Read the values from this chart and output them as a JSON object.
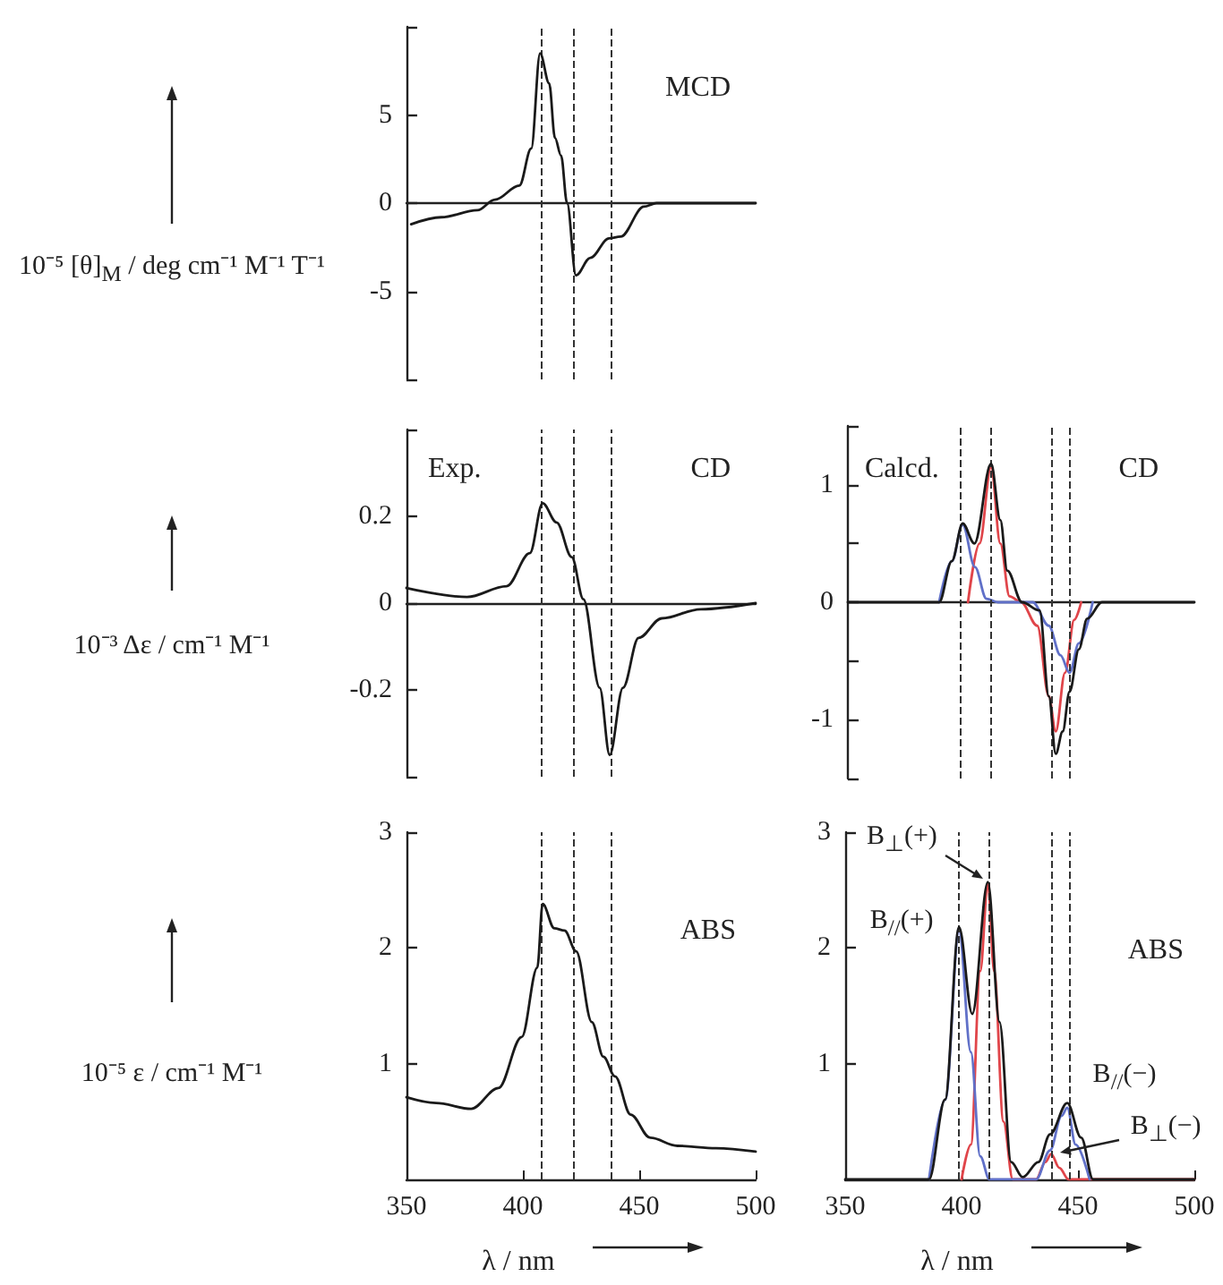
{
  "chart_data": [
    {
      "type": "line",
      "title": "MCD",
      "ylabel": "10⁻⁵ [θ]$_{M}$ / deg cm⁻¹ M⁻¹ T⁻¹",
      "xlim": [
        350,
        500
      ],
      "ylim": [
        -10,
        10
      ],
      "yticks": [
        {
          "value": -10,
          "label": null
        },
        -5,
        0,
        5,
        {
          "value": 10,
          "label": null
        }
      ],
      "tick_labels": "y",
      "marker": "none",
      "line_style": "solid",
      "series": [
        {
          "color": "#1a1a1a",
          "x": [
            352,
            365,
            380.5,
            388,
            398.5,
            403.6,
            407.4,
            411.3,
            413.8,
            416.4,
            419,
            422.8,
            429,
            437,
            442,
            452,
            457.4,
            470,
            485,
            500
          ],
          "values": [
            -1.2,
            -0.8,
            -0.4,
            0.2,
            1.0,
            3.1,
            8.5,
            6.8,
            3.7,
            2.7,
            0,
            -4.1,
            -3.1,
            -2.0,
            -1.9,
            -0.2,
            0,
            0,
            0,
            0
          ]
        }
      ],
      "ref_lines": [
        {
          "axis": "x",
          "value": 408,
          "line_style": "dashed",
          "color": "#333333"
        },
        {
          "axis": "x",
          "value": 422,
          "line_style": "dashed",
          "color": "#333333"
        },
        {
          "axis": "x",
          "value": 437.5,
          "line_style": "dashed",
          "color": "#333333"
        }
      ]
    },
    {
      "type": "line",
      "title": "CD",
      "subtitle": "Exp.",
      "ylabel": "10⁻³ Δε / cm⁻¹ M⁻¹",
      "xlim": [
        350,
        500
      ],
      "ylim": [
        -0.4,
        0.4
      ],
      "yticks": [
        {
          "value": -0.4,
          "label": null
        },
        -0.2,
        0,
        0.2,
        {
          "value": 0.4,
          "label": null
        }
      ],
      "tick_labels": "y",
      "marker": "none",
      "line_style": "solid",
      "series": [
        {
          "color": "#1a1a1a",
          "x": [
            350,
            376,
            393,
            403,
            408.5,
            414.5,
            421,
            426,
            433,
            437.3,
            443,
            449.7,
            459.7,
            476.4,
            500
          ],
          "values": [
            0.035,
            0.014,
            0.039,
            0.115,
            0.23,
            0.186,
            0.106,
            0.009,
            -0.195,
            -0.35,
            -0.195,
            -0.08,
            -0.035,
            -0.014,
            0
          ]
        }
      ],
      "ref_lines": [
        {
          "axis": "x",
          "value": 408,
          "line_style": "dashed",
          "color": "#333333"
        },
        {
          "axis": "x",
          "value": 422,
          "line_style": "dashed",
          "color": "#333333"
        },
        {
          "axis": "x",
          "value": 437.5,
          "line_style": "dashed",
          "color": "#333333"
        }
      ]
    },
    {
      "type": "line",
      "title": "CD",
      "subtitle": "Calcd.",
      "xlim": [
        350,
        500
      ],
      "ylim": [
        -1.5,
        1.5
      ],
      "yticks": [
        {
          "value": -1.5,
          "label": null
        },
        -1,
        {
          "value": -0.5,
          "label": null
        },
        0,
        {
          "value": 0.5,
          "label": null
        },
        1,
        {
          "value": 1.5,
          "label": null
        }
      ],
      "tick_labels": "y",
      "grid": false,
      "marker": "none",
      "line_style": "solid",
      "series": [
        {
          "color": "#1a1a1a",
          "x": [
            350,
            389.5,
            395,
            399.7,
            404.8,
            412,
            416,
            419,
            425.4,
            433,
            437,
            440,
            443,
            446,
            450,
            453.6,
            460,
            500
          ],
          "values": [
            0,
            0,
            0.35,
            0.67,
            0.5,
            1.18,
            0.7,
            0.27,
            0,
            -0.07,
            -0.8,
            -1.29,
            -1.1,
            -0.76,
            -0.4,
            -0.14,
            0,
            0
          ]
        },
        {
          "color": "#6070c8",
          "x": [
            389.5,
            395,
            399.7,
            405,
            410,
            415,
            430,
            437,
            442,
            446,
            450,
            456
          ],
          "values": [
            0,
            0.35,
            0.66,
            0.3,
            0.03,
            0,
            0,
            -0.2,
            -0.45,
            -0.6,
            -0.35,
            0
          ]
        },
        {
          "color": "#e0454a",
          "x": [
            402,
            407,
            412,
            416,
            420,
            425,
            432,
            437,
            440,
            444,
            448,
            451
          ],
          "values": [
            0,
            0.5,
            1.15,
            0.5,
            0.05,
            0,
            -0.2,
            -0.8,
            -1.1,
            -0.6,
            -0.15,
            0
          ]
        }
      ],
      "ref_lines": [
        {
          "axis": "x",
          "value": 399,
          "line_style": "dashed",
          "color": "#333333"
        },
        {
          "axis": "x",
          "value": 411.5,
          "line_style": "dashed",
          "color": "#333333"
        },
        {
          "axis": "x",
          "value": 438.5,
          "line_style": "dashed",
          "color": "#333333"
        },
        {
          "axis": "x",
          "value": 446,
          "line_style": "dashed",
          "color": "#333333"
        }
      ]
    },
    {
      "type": "line",
      "title": "ABS",
      "ylabel": "10⁻⁵ ε / cm⁻¹ M⁻¹",
      "xlabel": "λ / nm",
      "xlim": [
        350,
        500
      ],
      "ylim": [
        0,
        3
      ],
      "xticks": [
        350,
        400,
        450,
        500
      ],
      "yticks": [
        1,
        2,
        3
      ],
      "grid": false,
      "marker": "none",
      "line_style": "solid",
      "series": [
        {
          "color": "#1a1a1a",
          "x": [
            350,
            362.7,
            377.8,
            389.5,
            399.5,
            406.2,
            408.5,
            413.5,
            417.9,
            422.9,
            429.6,
            434.6,
            439.6,
            446.3,
            454.7,
            466.4,
            483,
            500
          ],
          "values": [
            0.71,
            0.66,
            0.61,
            0.79,
            1.23,
            1.83,
            2.38,
            2.17,
            2.15,
            1.97,
            1.36,
            1.06,
            0.89,
            0.56,
            0.36,
            0.29,
            0.27,
            0.24
          ]
        }
      ],
      "ref_lines": [
        {
          "axis": "x",
          "value": 408,
          "line_style": "dashed",
          "color": "#333333"
        },
        {
          "axis": "x",
          "value": 422,
          "line_style": "dashed",
          "color": "#333333"
        },
        {
          "axis": "x",
          "value": 437.5,
          "line_style": "dashed",
          "color": "#333333"
        }
      ]
    },
    {
      "type": "line",
      "title": "ABS",
      "xlabel": "λ / nm",
      "xlim": [
        350,
        500
      ],
      "ylim": [
        0,
        3
      ],
      "xticks": [
        350,
        400,
        450,
        500
      ],
      "yticks": [
        1,
        2,
        3
      ],
      "grid": false,
      "marker": "none",
      "line_style": "solid",
      "series": [
        {
          "color": "#1a1a1a",
          "x": [
            350,
            386,
            392.9,
            398.9,
            404.6,
            411.3,
            416.3,
            421.3,
            426.3,
            433,
            438,
            445.4,
            451.4,
            456.5,
            500
          ],
          "values": [
            0,
            0,
            0.69,
            2.18,
            1.43,
            2.57,
            1.36,
            0.15,
            0.02,
            0.15,
            0.39,
            0.66,
            0.36,
            0,
            0
          ]
        },
        {
          "color": "#6070c8",
          "x": [
            386,
            393,
            398.9,
            404,
            408,
            412,
            432,
            438,
            443,
            445.4,
            449,
            455
          ],
          "values": [
            0,
            0.69,
            2.15,
            1.1,
            0.2,
            0,
            0,
            0.25,
            0.55,
            0.62,
            0.3,
            0
          ]
        },
        {
          "color": "#e0454a",
          "x": [
            400,
            404,
            408,
            411.3,
            414,
            418,
            422,
            432,
            436,
            438.5,
            442,
            446,
            500
          ],
          "values": [
            0,
            0.3,
            1.8,
            2.55,
            1.8,
            0.5,
            0,
            0,
            0.15,
            0.22,
            0.1,
            0,
            0
          ]
        }
      ],
      "ref_lines": [
        {
          "axis": "x",
          "value": 399,
          "line_style": "dashed",
          "color": "#333333"
        },
        {
          "axis": "x",
          "value": 411.5,
          "line_style": "dashed",
          "color": "#333333"
        },
        {
          "axis": "x",
          "value": 438.5,
          "line_style": "dashed",
          "color": "#333333"
        },
        {
          "axis": "x",
          "value": 446,
          "line_style": "dashed",
          "color": "#333333"
        }
      ],
      "annotations": [
        {
          "text": "B$_{⊥}$(+)",
          "x": 411.3,
          "y": 2.57
        },
        {
          "text": "B$_{//}$(+)",
          "x": 398.9,
          "y": 2.18
        },
        {
          "text": "B$_{//}$(−)",
          "x": 445.4,
          "y": 0.66
        },
        {
          "text": "B$_{⊥}$(−)",
          "x": 438.5,
          "y": 0.22
        }
      ]
    }
  ]
}
